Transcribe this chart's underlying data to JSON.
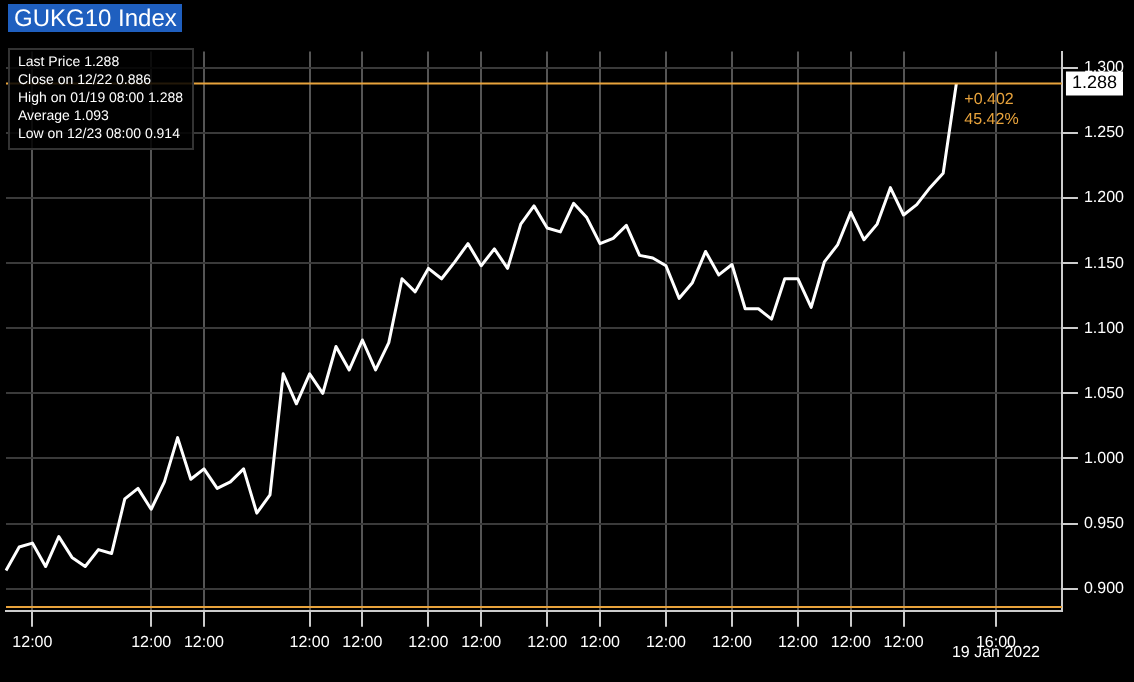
{
  "chart_data": {
    "type": "line",
    "title": "GUKG10 Index",
    "categories": [
      null,
      null,
      "12:00",
      null,
      null,
      null,
      null,
      null,
      null,
      null,
      null,
      "12:00",
      null,
      null,
      null,
      "12:00",
      null,
      null,
      null,
      null,
      null,
      null,
      null,
      "12:00",
      null,
      null,
      null,
      "12:00",
      null,
      null,
      null,
      null,
      "12:00",
      null,
      null,
      null,
      "12:00",
      null,
      null,
      null,
      null,
      "12:00",
      null,
      null,
      null,
      "12:00",
      null,
      null,
      null,
      null,
      "12:00",
      null,
      null,
      null,
      null,
      "12:00",
      null,
      null,
      null,
      null,
      "12:00",
      null,
      null,
      null,
      "12:00",
      null,
      null,
      null,
      "12:00",
      null,
      null,
      null,
      null,
      null,
      null,
      "16:00",
      null,
      null,
      null,
      null,
      null
    ],
    "series": [
      {
        "color": "#ffffff",
        "values": [
          0.914,
          0.932,
          0.935,
          0.917,
          0.94,
          0.924,
          0.917,
          0.93,
          0.927,
          0.969,
          0.977,
          0.961,
          0.982,
          1.016,
          0.984,
          0.992,
          0.977,
          0.982,
          0.992,
          0.958,
          0.972,
          1.065,
          1.042,
          1.065,
          1.05,
          1.086,
          1.068,
          1.091,
          1.068,
          1.089,
          1.138,
          1.128,
          1.146,
          1.138,
          1.151,
          1.165,
          1.148,
          1.161,
          1.146,
          1.18,
          1.194,
          1.177,
          1.174,
          1.196,
          1.185,
          1.165,
          1.169,
          1.179,
          1.156,
          1.154,
          1.148,
          1.123,
          1.135,
          1.159,
          1.141,
          1.149,
          1.115,
          1.115,
          1.107,
          1.138,
          1.138,
          1.116,
          1.151,
          1.164,
          1.189,
          1.168,
          1.18,
          1.208,
          1.187,
          1.195,
          1.208,
          1.219,
          1.288,
          null,
          null,
          null,
          null,
          null,
          null,
          null,
          null
        ]
      }
    ],
    "ylim": [
      0.883,
      1.3125
    ],
    "yticks": [
      {
        "value": 0.9,
        "label": "0.900"
      },
      {
        "value": 0.95,
        "label": "0.950"
      },
      {
        "value": 1.0,
        "label": "1.000"
      },
      {
        "value": 1.05,
        "label": "1.050"
      },
      {
        "value": 1.1,
        "label": "1.100"
      },
      {
        "value": 1.15,
        "label": "1.150"
      },
      {
        "value": 1.2,
        "label": "1.200"
      },
      {
        "value": 1.25,
        "label": "1.250"
      },
      {
        "value": 1.3,
        "label": "1.300"
      }
    ],
    "ref_lines": [
      {
        "axis": "y",
        "value": 0.886,
        "color": "#e8a33c"
      },
      {
        "axis": "y",
        "value": 1.288,
        "label": "1.288",
        "color": "#e8a33c"
      }
    ],
    "annotations": [
      "Last Price 1.288",
      "Close on 12/22 0.886",
      "High on 01/19 08:00 1.288",
      "Average 1.093",
      "Low on 12/23 08:00 0.914",
      {
        "text": "+0.402",
        "y": 1.288
      },
      {
        "text": "45.42%",
        "y": 1.288
      },
      "19 Jan 2022"
    ],
    "grid": true,
    "legend": false,
    "marker": "none",
    "line_style": "solid"
  }
}
